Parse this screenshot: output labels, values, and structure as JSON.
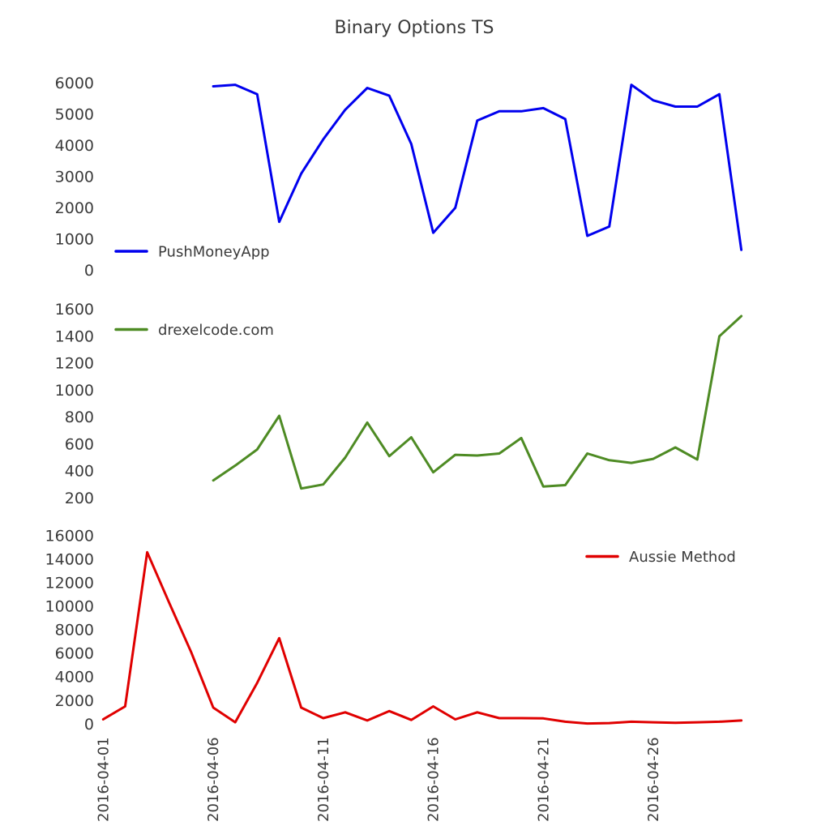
{
  "title": "Binary Options TS",
  "text_color": "#3b3b3b",
  "background": "#ffffff",
  "x_axis": {
    "tick_labels": [
      "2016-04-01",
      "2016-04-06",
      "2016-04-11",
      "2016-04-16",
      "2016-04-21",
      "2016-04-26"
    ],
    "start": "2016-04-01",
    "end": "2016-04-30"
  },
  "chart_data": [
    {
      "type": "line",
      "name": "PushMoneyApp",
      "color": "#0000ee",
      "legend_position": "lower left",
      "ylim": [
        0,
        6000
      ],
      "yticks": [
        0,
        1000,
        2000,
        3000,
        4000,
        5000,
        6000
      ],
      "dates": [
        "2016-04-06",
        "2016-04-07",
        "2016-04-08",
        "2016-04-09",
        "2016-04-10",
        "2016-04-11",
        "2016-04-12",
        "2016-04-13",
        "2016-04-14",
        "2016-04-15",
        "2016-04-16",
        "2016-04-17",
        "2016-04-18",
        "2016-04-19",
        "2016-04-20",
        "2016-04-21",
        "2016-04-22",
        "2016-04-23",
        "2016-04-24",
        "2016-04-25",
        "2016-04-26",
        "2016-04-27",
        "2016-04-28",
        "2016-04-29",
        "2016-04-30"
      ],
      "values": [
        5900,
        5950,
        5650,
        1550,
        3100,
        4200,
        5150,
        5850,
        5600,
        4050,
        1200,
        2000,
        4800,
        5100,
        5100,
        5200,
        4850,
        1100,
        1400,
        5950,
        5450,
        5250,
        5250,
        5650,
        650
      ]
    },
    {
      "type": "line",
      "name": "drexelcode.com",
      "color": "#4e8b24",
      "legend_position": "upper left",
      "ylim": [
        200,
        1600
      ],
      "yticks": [
        200,
        400,
        600,
        800,
        1000,
        1200,
        1400,
        1600
      ],
      "dates": [
        "2016-04-06",
        "2016-04-07",
        "2016-04-08",
        "2016-04-09",
        "2016-04-10",
        "2016-04-11",
        "2016-04-12",
        "2016-04-13",
        "2016-04-14",
        "2016-04-15",
        "2016-04-16",
        "2016-04-17",
        "2016-04-18",
        "2016-04-19",
        "2016-04-20",
        "2016-04-21",
        "2016-04-22",
        "2016-04-23",
        "2016-04-24",
        "2016-04-25",
        "2016-04-26",
        "2016-04-27",
        "2016-04-28",
        "2016-04-29",
        "2016-04-30"
      ],
      "values": [
        330,
        440,
        560,
        810,
        270,
        300,
        500,
        760,
        510,
        650,
        390,
        520,
        515,
        530,
        645,
        285,
        295,
        530,
        480,
        460,
        490,
        575,
        485,
        1400,
        1550
      ]
    },
    {
      "type": "line",
      "name": "Aussie Method",
      "color": "#e00000",
      "legend_position": "upper right",
      "ylim": [
        0,
        16000
      ],
      "yticks": [
        0,
        2000,
        4000,
        6000,
        8000,
        10000,
        12000,
        14000,
        16000
      ],
      "dates": [
        "2016-04-01",
        "2016-04-02",
        "2016-04-03",
        "2016-04-04",
        "2016-04-05",
        "2016-04-06",
        "2016-04-07",
        "2016-04-08",
        "2016-04-09",
        "2016-04-10",
        "2016-04-11",
        "2016-04-12",
        "2016-04-13",
        "2016-04-14",
        "2016-04-15",
        "2016-04-16",
        "2016-04-17",
        "2016-04-18",
        "2016-04-19",
        "2016-04-20",
        "2016-04-21",
        "2016-04-22",
        "2016-04-23",
        "2016-04-24",
        "2016-04-25",
        "2016-04-26",
        "2016-04-27",
        "2016-04-28",
        "2016-04-29",
        "2016-04-30"
      ],
      "values": [
        400,
        1500,
        14600,
        10300,
        6100,
        1400,
        150,
        3500,
        7300,
        1400,
        500,
        1000,
        300,
        1100,
        350,
        1500,
        400,
        1000,
        500,
        500,
        480,
        200,
        50,
        80,
        200,
        150,
        100,
        150,
        200,
        300
      ]
    }
  ]
}
